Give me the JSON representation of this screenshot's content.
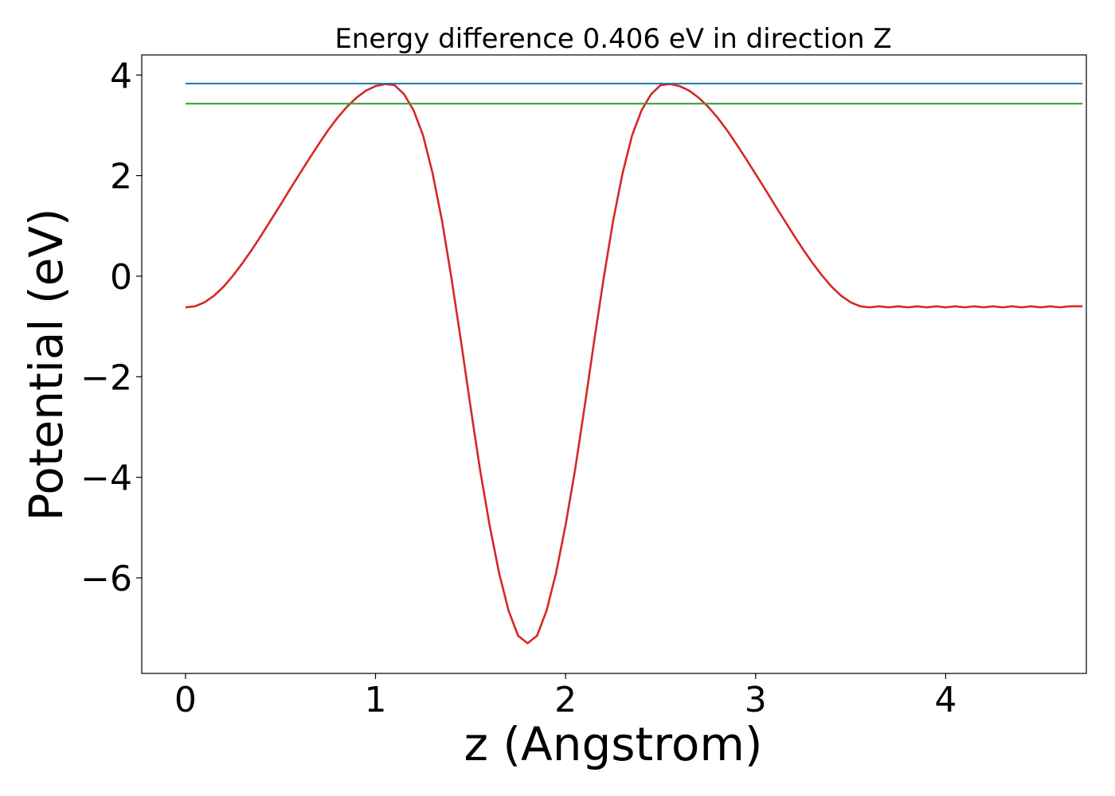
{
  "chart_data": {
    "type": "line",
    "title": "Energy difference 0.406 eV in direction Z",
    "xlabel": "z (Angstrom)",
    "ylabel": "Potential (eV)",
    "xlim": [
      -0.23,
      4.74
    ],
    "ylim": [
      -7.9,
      4.4
    ],
    "xticks": [
      0,
      1,
      2,
      3,
      4
    ],
    "xtick_labels": [
      "0",
      "1",
      "2",
      "3",
      "4"
    ],
    "yticks": [
      -6,
      -4,
      -2,
      0,
      2,
      4
    ],
    "ytick_labels": [
      "−6",
      "−4",
      "−2",
      "0",
      "2",
      "4"
    ],
    "grid": false,
    "series": [
      {
        "color": "#d62728",
        "x": [
          0.0,
          0.05,
          0.1,
          0.15,
          0.2,
          0.25,
          0.3,
          0.35,
          0.4,
          0.45,
          0.5,
          0.55,
          0.6,
          0.65,
          0.7,
          0.75,
          0.8,
          0.85,
          0.9,
          0.95,
          1.0,
          1.05,
          1.1,
          1.15,
          1.2,
          1.25,
          1.3,
          1.35,
          1.4,
          1.45,
          1.5,
          1.55,
          1.6,
          1.65,
          1.7,
          1.75,
          1.8,
          1.85,
          1.9,
          1.95,
          2.0,
          2.05,
          2.1,
          2.15,
          2.2,
          2.25,
          2.3,
          2.35,
          2.4,
          2.45,
          2.5,
          2.55,
          2.6,
          2.65,
          2.7,
          2.75,
          2.8,
          2.85,
          2.9,
          2.95,
          3.0,
          3.05,
          3.1,
          3.15,
          3.2,
          3.25,
          3.3,
          3.35,
          3.4,
          3.45,
          3.5,
          3.55,
          3.6,
          3.65,
          3.7,
          3.75,
          3.8,
          3.85,
          3.9,
          3.95,
          4.0,
          4.05,
          4.1,
          4.15,
          4.2,
          4.25,
          4.3,
          4.35,
          4.4,
          4.45,
          4.5,
          4.55,
          4.6,
          4.65,
          4.72
        ],
        "y": [
          -0.62,
          -0.6,
          -0.52,
          -0.39,
          -0.21,
          0.01,
          0.26,
          0.53,
          0.82,
          1.12,
          1.42,
          1.73,
          2.03,
          2.33,
          2.62,
          2.9,
          3.15,
          3.37,
          3.55,
          3.69,
          3.78,
          3.82,
          3.8,
          3.62,
          3.3,
          2.8,
          2.05,
          1.1,
          -0.05,
          -1.3,
          -2.6,
          -3.85,
          -4.95,
          -5.9,
          -6.65,
          -7.15,
          -7.3,
          -7.15,
          -6.65,
          -5.9,
          -4.95,
          -3.85,
          -2.6,
          -1.3,
          -0.05,
          1.1,
          2.05,
          2.8,
          3.3,
          3.62,
          3.8,
          3.82,
          3.78,
          3.69,
          3.55,
          3.37,
          3.15,
          2.9,
          2.62,
          2.33,
          2.03,
          1.73,
          1.42,
          1.12,
          0.82,
          0.53,
          0.26,
          0.01,
          -0.21,
          -0.39,
          -0.52,
          -0.6,
          -0.62,
          -0.6,
          -0.62,
          -0.6,
          -0.62,
          -0.6,
          -0.62,
          -0.6,
          -0.62,
          -0.6,
          -0.62,
          -0.6,
          -0.62,
          -0.6,
          -0.62,
          -0.6,
          -0.62,
          -0.6,
          -0.62,
          -0.6,
          -0.62,
          -0.6,
          -0.6
        ]
      },
      {
        "color": "#1f77b4",
        "x": [
          0.0,
          4.72
        ],
        "y": [
          3.83,
          3.83
        ]
      },
      {
        "color": "#2ca02c",
        "x": [
          0.0,
          4.72
        ],
        "y": [
          3.43,
          3.43
        ]
      }
    ]
  }
}
